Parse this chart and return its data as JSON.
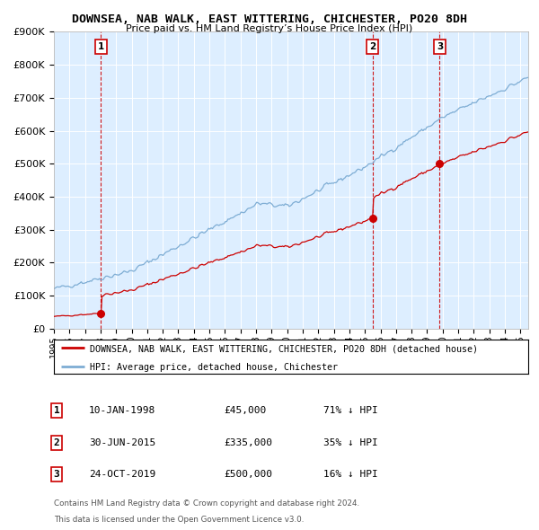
{
  "title": "DOWNSEA, NAB WALK, EAST WITTERING, CHICHESTER, PO20 8DH",
  "subtitle": "Price paid vs. HM Land Registry’s House Price Index (HPI)",
  "sales": [
    {
      "date_num": 1998.03,
      "price": 45000,
      "label": "1",
      "date_str": "10-JAN-1998",
      "pct": "71% ↓ HPI"
    },
    {
      "date_num": 2015.49,
      "price": 335000,
      "label": "2",
      "date_str": "30-JUN-2015",
      "pct": "35% ↓ HPI"
    },
    {
      "date_num": 2019.81,
      "price": 500000,
      "label": "3",
      "date_str": "24-OCT-2019",
      "pct": "16% ↓ HPI"
    }
  ],
  "legend_line1": "DOWNSEA, NAB WALK, EAST WITTERING, CHICHESTER, PO20 8DH (detached house)",
  "legend_line2": "HPI: Average price, detached house, Chichester",
  "footer1": "Contains HM Land Registry data © Crown copyright and database right 2024.",
  "footer2": "This data is licensed under the Open Government Licence v3.0.",
  "sale_color": "#cc0000",
  "hpi_color": "#7eadd4",
  "bg_color": "#ddeeff",
  "xlim": [
    1995.0,
    2025.5
  ],
  "ylim": [
    0,
    900000
  ],
  "yticks": [
    0,
    100000,
    200000,
    300000,
    400000,
    500000,
    600000,
    700000,
    800000,
    900000
  ],
  "ytick_labels": [
    "£0",
    "£100K",
    "£200K",
    "£300K",
    "£400K",
    "£500K",
    "£600K",
    "£700K",
    "£800K",
    "£900K"
  ]
}
